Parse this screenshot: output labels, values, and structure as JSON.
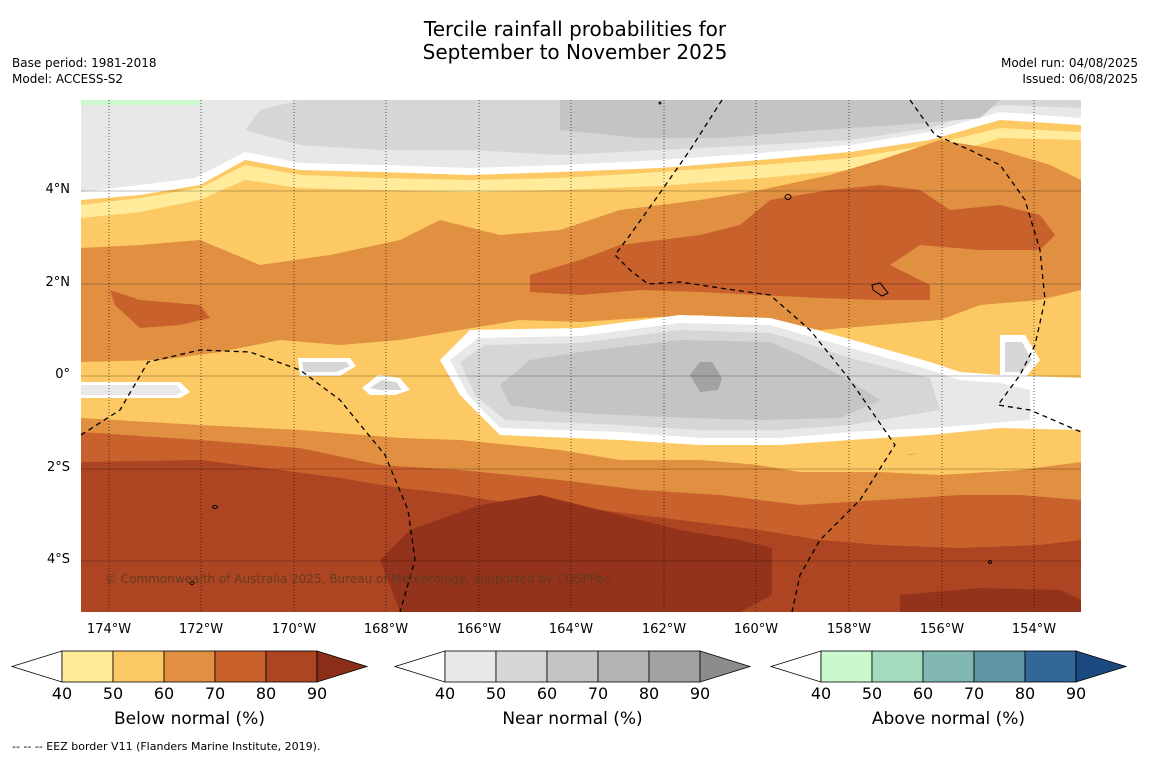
{
  "title_line1": "Tercile rainfall probabilities for",
  "title_line2": "September to November 2025",
  "base_period": "Base period: 1981-2018",
  "model": "Model: ACCESS-S2",
  "model_run": "Model run: 04/08/2025",
  "issued": "Issued: 06/08/2025",
  "copyright": "© Commonwealth of Australia 2025, Bureau of Meteorology, supported by COSPPac",
  "lat_labels": [
    "4°N",
    "2°N",
    "0°",
    "2°S",
    "4°S"
  ],
  "lon_labels": [
    "174°W",
    "172°W",
    "170°W",
    "168°W",
    "166°W",
    "164°W",
    "162°W",
    "160°W",
    "158°W",
    "156°W",
    "154°W"
  ],
  "colorbars": [
    {
      "title": "Below normal (%)",
      "ticks": [
        "40",
        "50",
        "60",
        "70",
        "80",
        "90"
      ],
      "colors": [
        "#ffeb99",
        "#fdc964",
        "#e09040",
        "#c9612d",
        "#ad4522",
        "#8b2e18"
      ]
    },
    {
      "title": "Near normal (%)",
      "ticks": [
        "40",
        "50",
        "60",
        "70",
        "80",
        "90"
      ],
      "colors": [
        "#e8e8e8",
        "#d6d6d6",
        "#c4c4c4",
        "#b4b4b4",
        "#a2a2a2",
        "#8c8c8c"
      ]
    },
    {
      "title": "Above normal (%)",
      "ticks": [
        "40",
        "50",
        "60",
        "70",
        "80",
        "90"
      ],
      "colors": [
        "#c9f9cc",
        "#a4dabd",
        "#82b8b2",
        "#5f94a3",
        "#336699",
        "#1a4a80"
      ]
    }
  ],
  "footer": "--  --  -- EEZ border V11 (Flanders Marine Institute, 2019)."
}
